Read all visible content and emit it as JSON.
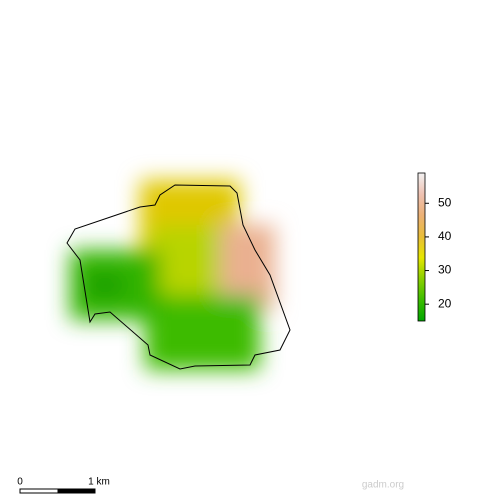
{
  "legend": {
    "lim": [
      15,
      59
    ],
    "ticks": [
      20,
      30,
      40,
      50
    ],
    "colors": [
      "#00a600",
      "#3cbd00",
      "#8bd000",
      "#e6e600",
      "#e9bd3a",
      "#ecb176",
      "#efc2b3",
      "#f2f2f2"
    ]
  },
  "scale_bar": {
    "start_label": "0",
    "end_label": "1 km"
  },
  "credit": "gadm.org"
}
